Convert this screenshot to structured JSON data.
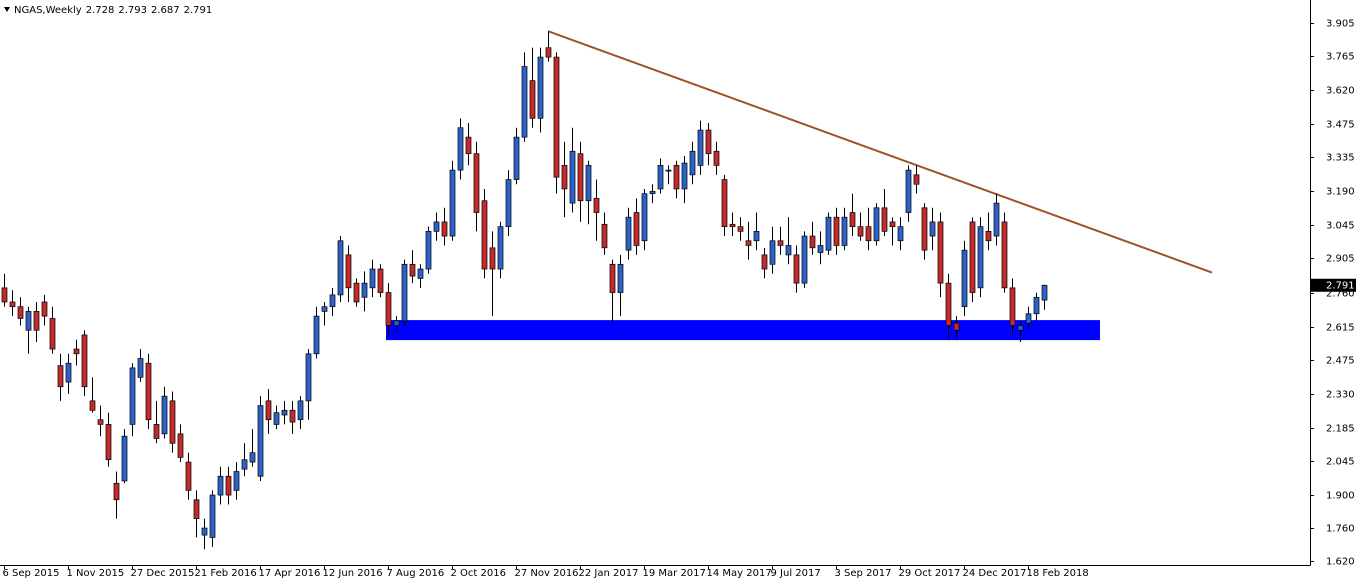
{
  "chart_data": {
    "type": "candlestick",
    "symbol": "NGAS,Weekly",
    "up_color": "#2b62c8",
    "down_color": "#c32a2a",
    "categories": [
      "6 Sep 2015",
      null,
      null,
      null,
      null,
      null,
      null,
      null,
      "1 Nov 2015",
      null,
      null,
      null,
      null,
      null,
      null,
      null,
      "27 Dec 2015",
      null,
      null,
      null,
      null,
      null,
      null,
      null,
      "21 Feb 2016",
      null,
      null,
      null,
      null,
      null,
      null,
      null,
      "17 Apr 2016",
      null,
      null,
      null,
      null,
      null,
      null,
      null,
      "12 Jun 2016",
      null,
      null,
      null,
      null,
      null,
      null,
      null,
      "7 Aug 2016",
      null,
      null,
      null,
      null,
      null,
      null,
      null,
      "2 Oct 2016",
      null,
      null,
      null,
      null,
      null,
      null,
      null,
      "27 Nov 2016",
      null,
      null,
      null,
      null,
      null,
      null,
      null,
      "22 Jan 2017",
      null,
      null,
      null,
      null,
      null,
      null,
      null,
      "19 Mar 2017",
      null,
      null,
      null,
      null,
      null,
      null,
      null,
      "14 May 2017",
      null,
      null,
      null,
      null,
      null,
      null,
      null,
      "9 Jul 2017",
      null,
      null,
      null,
      null,
      null,
      null,
      null,
      "3 Sep 2017",
      null,
      null,
      null,
      null,
      null,
      null,
      null,
      "29 Oct 2017",
      null,
      null,
      null,
      null,
      null,
      null,
      null,
      "24 Dec 2017",
      null,
      null,
      null,
      null,
      null,
      null,
      null,
      "18 Feb 2018",
      null,
      null
    ],
    "open": [
      2.78,
      2.72,
      2.7,
      2.6,
      2.68,
      2.72,
      2.65,
      2.45,
      2.38,
      2.52,
      2.58,
      2.3,
      2.22,
      2.2,
      1.95,
      1.96,
      2.2,
      2.4,
      2.46,
      2.2,
      2.16,
      2.3,
      2.16,
      2.04,
      1.88,
      1.73,
      1.72,
      1.9,
      1.98,
      1.92,
      2.01,
      2.04,
      1.98,
      2.3,
      2.2,
      2.24,
      2.26,
      2.22,
      2.3,
      2.5,
      2.68,
      2.7,
      2.75,
      2.92,
      2.8,
      2.74,
      2.78,
      2.86,
      2.76,
      2.62,
      2.64,
      2.88,
      2.82,
      2.86,
      3.02,
      3.06,
      3.0,
      3.28,
      3.42,
      3.35,
      3.15,
      2.95,
      2.86,
      3.04,
      3.24,
      3.42,
      3.66,
      3.5,
      3.8,
      3.76,
      3.3,
      3.14,
      3.35,
      3.15,
      3.16,
      3.05,
      2.88,
      2.76,
      2.94,
      3.1,
      2.98,
      3.18,
      3.2,
      3.28,
      3.3,
      3.2,
      3.26,
      3.3,
      3.45,
      3.36,
      3.24,
      3.05,
      3.04,
      2.98,
      2.98,
      2.92,
      2.88,
      2.98,
      2.92,
      2.92,
      2.8,
      3.0,
      2.93,
      2.94,
      3.08,
      2.96,
      3.1,
      3.04,
      3.04,
      2.98,
      3.12,
      3.06,
      2.98,
      3.1,
      3.26,
      3.12,
      3.0,
      3.06,
      2.8,
      2.63,
      2.7,
      3.06,
      2.78,
      3.02,
      3.0,
      3.06,
      2.78,
      2.6,
      2.63,
      2.67,
      2.728
    ],
    "high": [
      2.84,
      2.77,
      2.74,
      2.7,
      2.72,
      2.75,
      2.7,
      2.5,
      2.5,
      2.56,
      2.6,
      2.4,
      2.28,
      2.25,
      2.0,
      2.18,
      2.46,
      2.52,
      2.5,
      2.3,
      2.36,
      2.34,
      2.2,
      2.08,
      1.92,
      1.8,
      1.92,
      2.02,
      2.02,
      2.04,
      2.12,
      2.18,
      2.32,
      2.35,
      2.28,
      2.3,
      2.3,
      2.32,
      2.52,
      2.7,
      2.72,
      2.78,
      3.0,
      2.96,
      2.82,
      2.85,
      2.9,
      2.88,
      2.8,
      2.66,
      2.9,
      2.94,
      2.88,
      3.04,
      3.1,
      3.12,
      3.32,
      3.5,
      3.48,
      3.4,
      3.2,
      3.02,
      3.06,
      3.28,
      3.46,
      3.78,
      3.8,
      3.8,
      3.87,
      3.78,
      3.4,
      3.46,
      3.4,
      3.32,
      3.24,
      3.1,
      2.9,
      2.92,
      3.12,
      3.16,
      3.2,
      3.22,
      3.33,
      3.3,
      3.32,
      3.34,
      3.4,
      3.49,
      3.48,
      3.4,
      3.26,
      3.1,
      3.08,
      3.06,
      3.1,
      2.95,
      3.04,
      3.04,
      3.08,
      2.96,
      3.02,
      3.06,
      3.02,
      3.1,
      3.12,
      3.12,
      3.18,
      3.1,
      3.12,
      3.14,
      3.2,
      3.08,
      3.08,
      3.3,
      3.3,
      3.14,
      3.12,
      3.1,
      2.84,
      2.66,
      2.98,
      3.08,
      3.08,
      3.1,
      3.18,
      3.1,
      2.82,
      2.64,
      2.7,
      2.76,
      2.793
    ],
    "low": [
      2.7,
      2.66,
      2.62,
      2.5,
      2.55,
      2.62,
      2.5,
      2.3,
      2.33,
      2.45,
      2.32,
      2.25,
      2.15,
      2.02,
      1.8,
      1.95,
      2.15,
      2.38,
      2.18,
      2.12,
      2.14,
      2.08,
      2.04,
      1.88,
      1.72,
      1.67,
      1.68,
      1.86,
      1.86,
      1.88,
      1.98,
      2.02,
      1.96,
      2.16,
      2.18,
      2.2,
      2.16,
      2.18,
      2.22,
      2.48,
      2.62,
      2.66,
      2.72,
      2.72,
      2.7,
      2.68,
      2.74,
      2.74,
      2.58,
      2.6,
      2.62,
      2.8,
      2.78,
      2.84,
      2.98,
      2.96,
      2.98,
      3.24,
      3.3,
      3.02,
      2.82,
      2.66,
      2.82,
      3.0,
      3.22,
      3.4,
      3.46,
      3.44,
      3.74,
      3.18,
      3.08,
      3.1,
      3.06,
      3.05,
      2.98,
      2.92,
      2.63,
      2.66,
      2.9,
      2.92,
      2.94,
      3.14,
      3.18,
      3.22,
      3.16,
      3.14,
      3.22,
      3.26,
      3.3,
      3.26,
      3.0,
      3.0,
      2.98,
      2.9,
      2.94,
      2.82,
      2.84,
      2.92,
      2.88,
      2.76,
      2.78,
      2.92,
      2.88,
      2.92,
      2.92,
      2.94,
      3.0,
      2.98,
      2.94,
      2.96,
      3.0,
      2.96,
      2.94,
      3.06,
      3.18,
      2.9,
      2.94,
      2.74,
      2.56,
      2.56,
      2.66,
      2.72,
      2.74,
      2.94,
      2.96,
      2.76,
      2.58,
      2.55,
      2.6,
      2.64,
      2.687
    ],
    "close": [
      2.72,
      2.7,
      2.65,
      2.68,
      2.6,
      2.66,
      2.52,
      2.36,
      2.46,
      2.5,
      2.36,
      2.26,
      2.2,
      2.05,
      1.88,
      2.15,
      2.44,
      2.48,
      2.22,
      2.14,
      2.32,
      2.12,
      2.06,
      1.92,
      1.8,
      1.76,
      1.9,
      1.98,
      1.9,
      2.0,
      2.05,
      2.08,
      2.28,
      2.22,
      2.25,
      2.26,
      2.21,
      2.3,
      2.5,
      2.66,
      2.7,
      2.75,
      2.98,
      2.78,
      2.72,
      2.8,
      2.86,
      2.76,
      2.62,
      2.64,
      2.88,
      2.83,
      2.86,
      3.02,
      3.06,
      3.0,
      3.28,
      3.46,
      3.35,
      3.1,
      2.86,
      2.86,
      3.04,
      3.24,
      3.42,
      3.72,
      3.5,
      3.76,
      3.76,
      3.25,
      3.2,
      3.36,
      3.15,
      3.3,
      3.1,
      2.95,
      2.76,
      2.88,
      3.08,
      2.96,
      3.18,
      3.19,
      3.3,
      3.28,
      3.2,
      3.31,
      3.36,
      3.45,
      3.35,
      3.3,
      3.04,
      3.04,
      3.02,
      2.96,
      3.02,
      2.86,
      2.98,
      2.96,
      2.96,
      2.8,
      3.0,
      2.95,
      2.96,
      3.08,
      2.96,
      3.08,
      3.04,
      3.0,
      2.98,
      3.12,
      3.02,
      3.04,
      3.04,
      3.28,
      3.22,
      2.94,
      3.06,
      2.8,
      2.62,
      2.6,
      2.94,
      2.76,
      3.04,
      2.98,
      3.14,
      2.78,
      2.62,
      2.62,
      2.67,
      2.74,
      2.791
    ],
    "ylim": [
      1.603,
      3.96
    ],
    "yticks": [
      {
        "value": 1.62,
        "label": "1.620"
      },
      {
        "value": 1.76,
        "label": "1.760"
      },
      {
        "value": 1.9,
        "label": "1.900"
      },
      2.045,
      2.185,
      {
        "value": 2.33,
        "label": "2.330"
      },
      2.475,
      2.615,
      {
        "value": 2.76,
        "label": "2.760"
      },
      2.905,
      3.045,
      {
        "value": 3.19,
        "label": "3.190"
      },
      3.335,
      3.475,
      {
        "value": 3.62,
        "label": "3.620"
      },
      3.765,
      3.905
    ],
    "trendline": {
      "color": "#a0522d",
      "x": [
        68,
        151
      ],
      "y": [
        3.87,
        2.845
      ]
    },
    "zone": {
      "color": "#0000ff",
      "x": [
        48,
        137
      ],
      "y": [
        2.558,
        2.643
      ]
    },
    "grid": false
  }
}
